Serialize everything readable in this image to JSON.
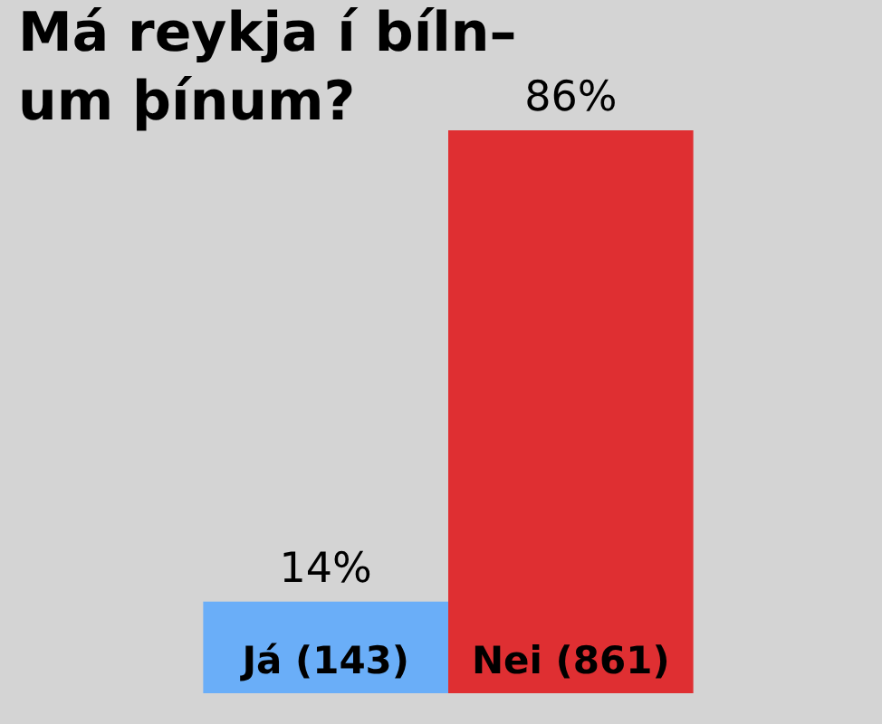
{
  "chart_data": {
    "type": "bar",
    "title": "Má reykja í bíln–\num þínum?",
    "categories": [
      "Já (143)",
      "Nei (861)"
    ],
    "values": [
      14,
      86
    ],
    "colors": [
      "#6aaef8",
      "#df2f32"
    ],
    "value_labels": [
      "14%",
      "86%"
    ]
  }
}
